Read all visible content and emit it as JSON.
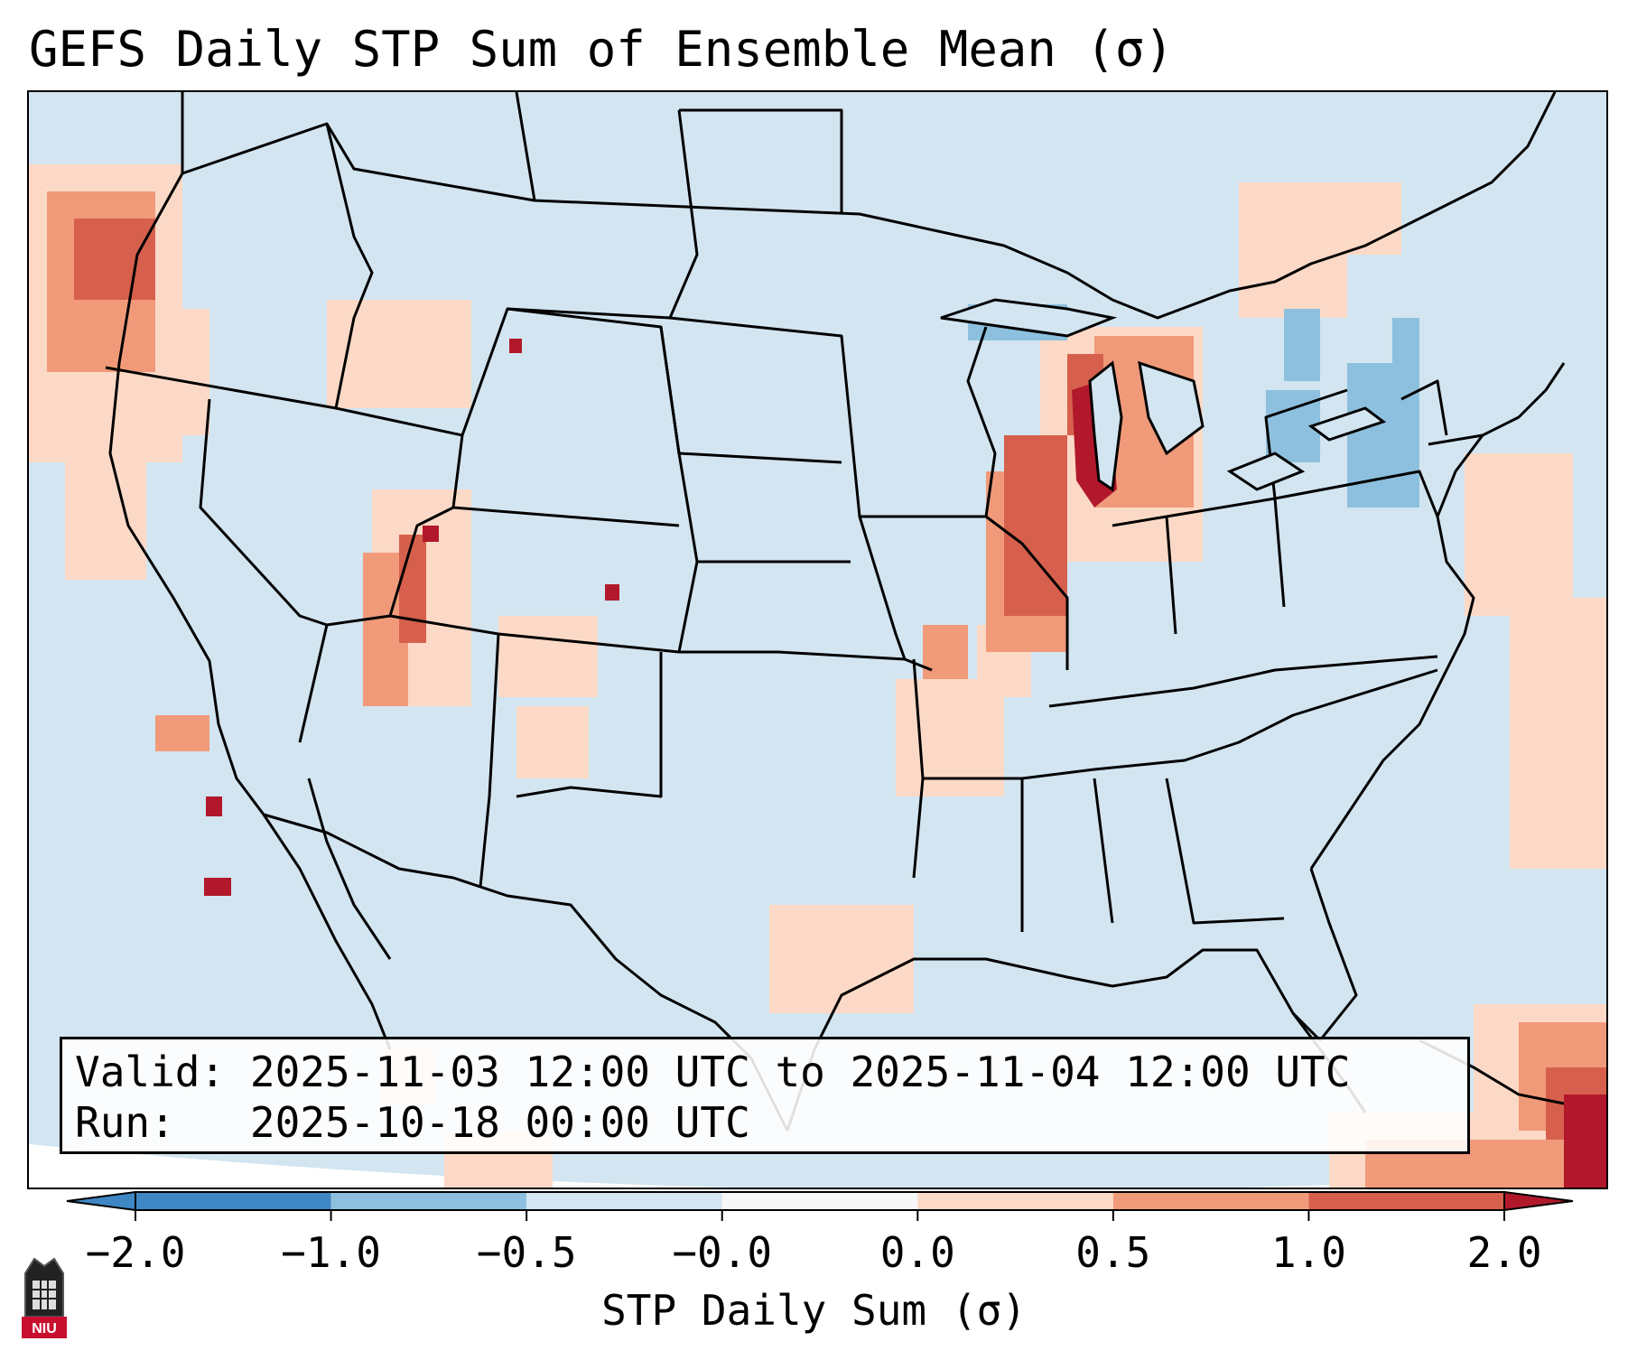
{
  "title": "GEFS Daily STP Sum of Ensemble Mean (σ)",
  "info": {
    "valid_label": "Valid:",
    "valid_value": "2025-11-03 12:00 UTC to 2025-11-04 12:00 UTC",
    "run_label": "Run:",
    "run_value": "2025-10-18 00:00 UTC"
  },
  "colorbar": {
    "label": "STP Daily Sum (σ)",
    "ticks": [
      "−2.0",
      "−1.0",
      "−0.5",
      "−0.0",
      "0.0",
      "0.5",
      "1.0",
      "2.0"
    ],
    "colors": [
      "#3f87c4",
      "#8dc0de",
      "#d2e5f0",
      "#f7f7f7",
      "#fcd9c6",
      "#f09a7a",
      "#d6604d",
      "#b2182b"
    ]
  },
  "map": {
    "ocean_color": "#d2e5f0",
    "outline_color": "#000000",
    "regions_with_positive_anomaly": [
      "Pacific Northwest",
      "Utah",
      "Wisconsin",
      "Illinois",
      "Lake Michigan",
      "Lower Michigan",
      "Caribbean"
    ]
  },
  "logo": {
    "text": "NIU"
  }
}
